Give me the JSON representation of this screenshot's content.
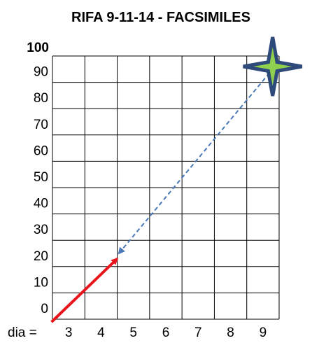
{
  "chart_data": {
    "type": "table",
    "title": "RIFA 9-11-14 - FACSIMILES",
    "xlabel": "dia =",
    "x_ticks": [
      "3",
      "4",
      "5",
      "6",
      "7",
      "8",
      "9"
    ],
    "y_ticks": [
      "0",
      "10",
      "20",
      "30",
      "40",
      "50",
      "60",
      "70",
      "80",
      "90",
      "100"
    ],
    "xlim": [
      2.5,
      9.5
    ],
    "ylim": [
      0,
      100
    ],
    "grid": true,
    "annotations": [
      {
        "kind": "solid-arrow",
        "color": "#e8161c",
        "from": {
          "x": 2.6,
          "y": 0
        },
        "to": {
          "x": 4.5,
          "y": 23
        }
      },
      {
        "kind": "dashed-double-arrow",
        "color": "#4a78b8",
        "from": {
          "x": 4.55,
          "y": 25
        },
        "to": {
          "x": 9.3,
          "y": 95
        }
      },
      {
        "kind": "star-marker",
        "fill": "#8fd14f",
        "stroke": "#2e4a7a",
        "at": {
          "x": 9.3,
          "y": 96
        }
      }
    ]
  }
}
